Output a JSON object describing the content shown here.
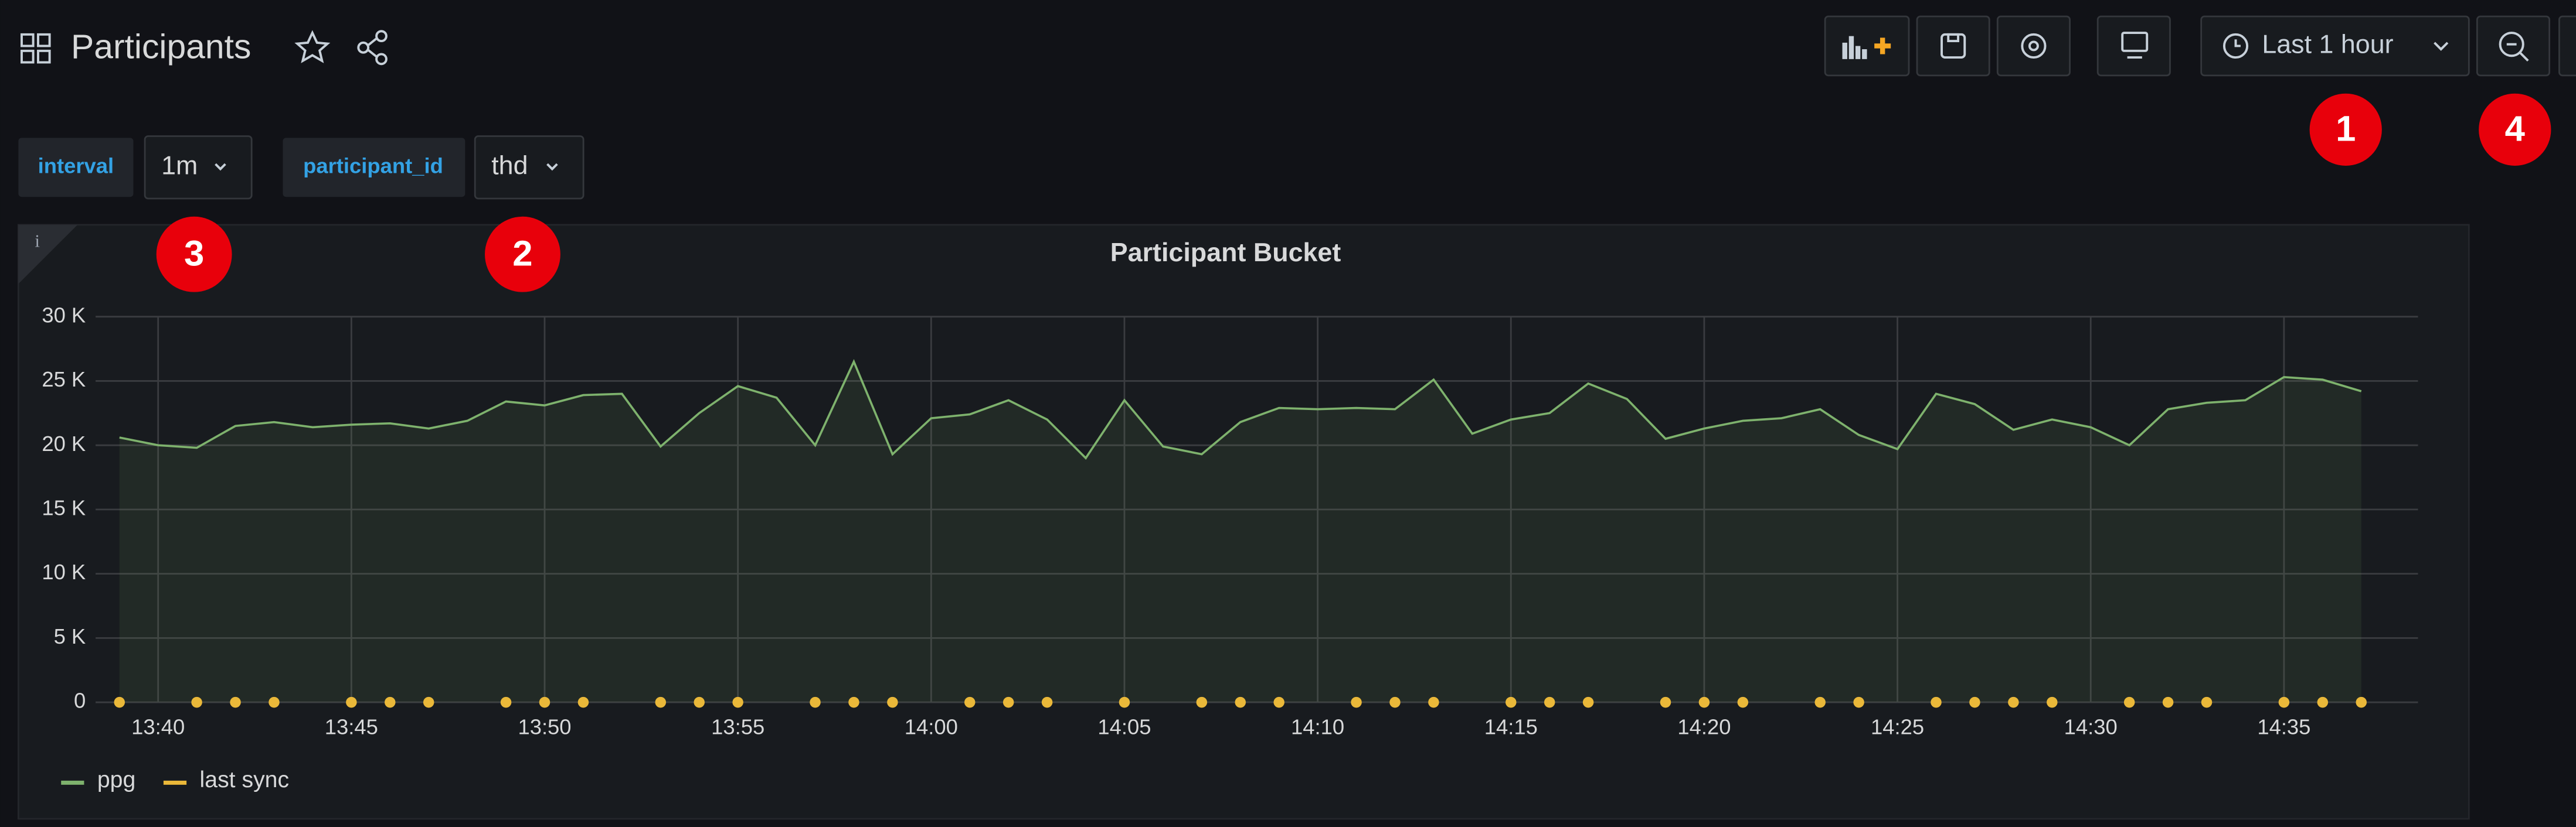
{
  "header": {
    "title": "Participants",
    "time_range": "Last 1 hour"
  },
  "variables": [
    {
      "name": "interval",
      "value": "1m"
    },
    {
      "name": "participant_id",
      "value": "thd"
    }
  ],
  "badges": [
    "1",
    "2",
    "3",
    "4"
  ],
  "panel_info": "i",
  "chart_data": {
    "type": "line",
    "title": "Participant Bucket",
    "xlim": [
      "13:38",
      "14:38"
    ],
    "xticks": [
      "13:40",
      "13:45",
      "13:50",
      "13:55",
      "14:00",
      "14:05",
      "14:10",
      "14:15",
      "14:20",
      "14:25",
      "14:30",
      "14:35"
    ],
    "ylim": [
      0,
      30000
    ],
    "yticks": [
      {
        "value": 0,
        "label": "0"
      },
      {
        "value": 5000,
        "label": "5 K"
      },
      {
        "value": 10000,
        "label": "10 K"
      },
      {
        "value": 15000,
        "label": "15 K"
      },
      {
        "value": 20000,
        "label": "20 K"
      },
      {
        "value": 25000,
        "label": "25 K"
      },
      {
        "value": 30000,
        "label": "30 K"
      }
    ],
    "grid": true,
    "legend": "bottom-left",
    "series": [
      {
        "name": "ppg",
        "color": "#7eb26d",
        "style": "line",
        "x": [
          "13:39",
          "13:40",
          "13:41",
          "13:42",
          "13:43",
          "13:44",
          "13:45",
          "13:46",
          "13:47",
          "13:48",
          "13:49",
          "13:50",
          "13:51",
          "13:52",
          "13:53",
          "13:54",
          "13:55",
          "13:56",
          "13:57",
          "13:58",
          "13:59",
          "14:00",
          "14:01",
          "14:02",
          "14:03",
          "14:04",
          "14:05",
          "14:06",
          "14:07",
          "14:08",
          "14:09",
          "14:10",
          "14:11",
          "14:12",
          "14:13",
          "14:14",
          "14:15",
          "14:16",
          "14:17",
          "14:18",
          "14:19",
          "14:20",
          "14:21",
          "14:22",
          "14:23",
          "14:24",
          "14:25",
          "14:26",
          "14:27",
          "14:28",
          "14:29",
          "14:30",
          "14:31",
          "14:32",
          "14:33",
          "14:34",
          "14:35",
          "14:36",
          "14:37"
        ],
        "values": [
          20600,
          20000,
          19800,
          21500,
          21800,
          21400,
          21600,
          21700,
          21300,
          21900,
          23400,
          23100,
          23900,
          24000,
          19900,
          22500,
          24600,
          23700,
          20000,
          26500,
          19300,
          22100,
          22400,
          23500,
          22000,
          19000,
          23500,
          19900,
          19300,
          21800,
          22900,
          22800,
          22900,
          22800,
          25100,
          20900,
          22000,
          22500,
          24800,
          23600,
          20500,
          21300,
          21900,
          22100,
          22800,
          20800,
          19700,
          24000,
          23200,
          21200,
          22000,
          21400,
          20000,
          22800,
          23300,
          23500,
          25300,
          25100,
          24200
        ]
      },
      {
        "name": "last sync",
        "color": "#eab839",
        "style": "points",
        "x": [
          "13:39",
          "13:41",
          "13:42",
          "13:43",
          "13:45",
          "13:46",
          "13:47",
          "13:49",
          "13:50",
          "13:51",
          "13:53",
          "13:54",
          "13:55",
          "13:57",
          "13:58",
          "13:59",
          "14:01",
          "14:02",
          "14:03",
          "14:05",
          "14:07",
          "14:08",
          "14:09",
          "14:11",
          "14:12",
          "14:13",
          "14:15",
          "14:16",
          "14:17",
          "14:19",
          "14:20",
          "14:21",
          "14:23",
          "14:24",
          "14:26",
          "14:27",
          "14:28",
          "14:29",
          "14:31",
          "14:32",
          "14:33",
          "14:35",
          "14:36",
          "14:37"
        ],
        "values": [
          0,
          0,
          0,
          0,
          0,
          0,
          0,
          0,
          0,
          0,
          0,
          0,
          0,
          0,
          0,
          0,
          0,
          0,
          0,
          0,
          0,
          0,
          0,
          0,
          0,
          0,
          0,
          0,
          0,
          0,
          0,
          0,
          0,
          0,
          0,
          0,
          0,
          0,
          0,
          0,
          0,
          0,
          0,
          0
        ]
      }
    ]
  }
}
